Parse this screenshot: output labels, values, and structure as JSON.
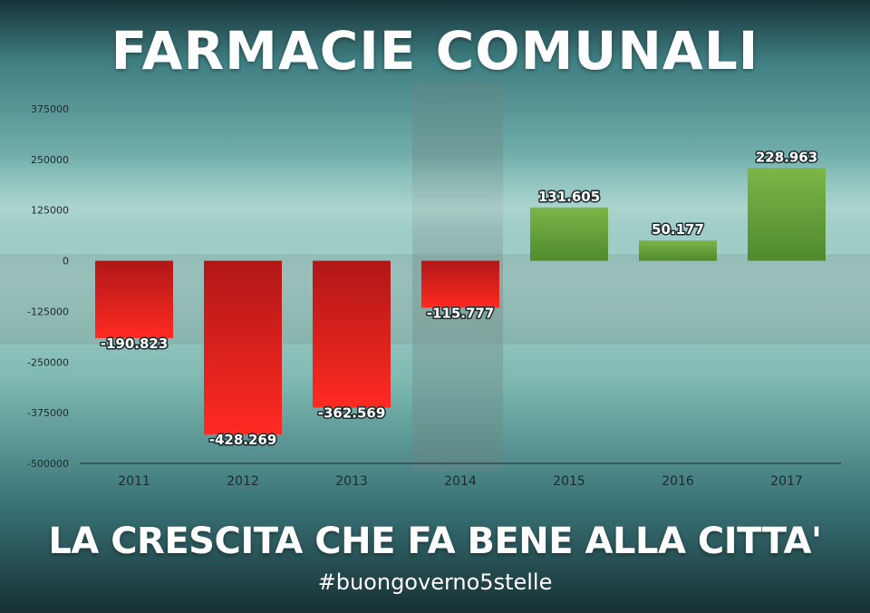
{
  "title": "FARMACIE COMUNALI",
  "subtitle": "LA CRESCITA CHE FA BENE ALLA CITTA'",
  "hashtag": "#buongoverno5stelle",
  "colors": {
    "negative_top": "#b01717",
    "negative_bottom": "#ff2a22",
    "positive_top": "#7cb548",
    "positive_bottom": "#4f8a2d"
  },
  "chart_data": {
    "type": "bar",
    "categories": [
      "2011",
      "2012",
      "2013",
      "2014",
      "2015",
      "2016",
      "2017"
    ],
    "values": [
      -190823,
      -428269,
      -362569,
      -115777,
      131605,
      50177,
      228963
    ],
    "data_labels": [
      "-190.823",
      "-428.269",
      "-362.569",
      "-115.777",
      "131.605",
      "50.177",
      "228.963"
    ],
    "ylim": [
      -500000,
      375000
    ],
    "yticks": [
      375000,
      250000,
      125000,
      0,
      -125000,
      -250000,
      -375000,
      -500000
    ],
    "ytick_labels": [
      "375000",
      "250000",
      "125000",
      "0",
      "-125000",
      "-250000",
      "-375000",
      "-500000"
    ],
    "grid": false
  }
}
